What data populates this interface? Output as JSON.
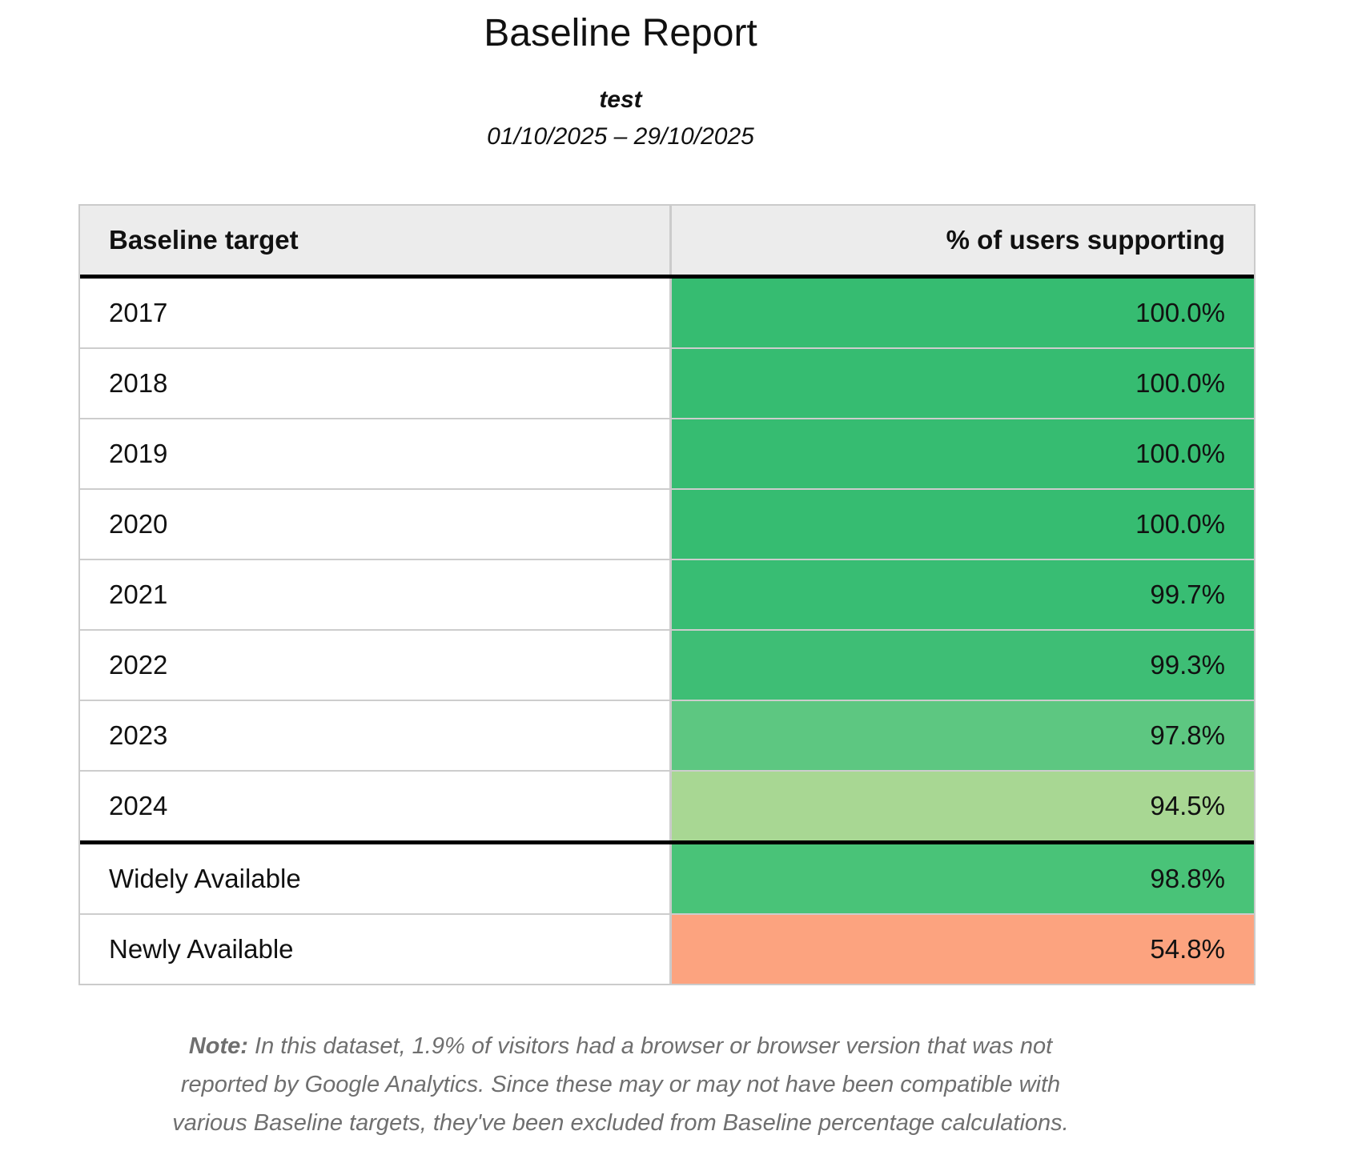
{
  "report": {
    "title": "Baseline Report",
    "subtitle": "test",
    "date_range": "01/10/2025 – 29/10/2025",
    "note_label": "Note:",
    "note_text": " In this dataset, 1.9% of visitors had a browser or browser version that was not reported by Google Analytics. Since these may or may not have been compatible with various Baseline targets, they've been excluded from Baseline percentage calculations."
  },
  "table": {
    "columns": [
      "Baseline target",
      "% of users supporting"
    ],
    "excluded_visitors_pct": "1.9%",
    "rows": [
      {
        "target": "2017",
        "value": "100.0%",
        "color": "#36bc71",
        "separator_above": false
      },
      {
        "target": "2018",
        "value": "100.0%",
        "color": "#36bc71",
        "separator_above": false
      },
      {
        "target": "2019",
        "value": "100.0%",
        "color": "#36bc71",
        "separator_above": false
      },
      {
        "target": "2020",
        "value": "100.0%",
        "color": "#36bc71",
        "separator_above": false
      },
      {
        "target": "2021",
        "value": "99.7%",
        "color": "#38bd73",
        "separator_above": false
      },
      {
        "target": "2022",
        "value": "99.3%",
        "color": "#3ebe75",
        "separator_above": false
      },
      {
        "target": "2023",
        "value": "97.8%",
        "color": "#5dc781",
        "separator_above": false
      },
      {
        "target": "2024",
        "value": "94.5%",
        "color": "#a8d793",
        "separator_above": false
      },
      {
        "target": "Widely Available",
        "value": "98.8%",
        "color": "#49c378",
        "separator_above": true
      },
      {
        "target": "Newly Available",
        "value": "54.8%",
        "color": "#fca37f",
        "separator_above": false
      }
    ]
  }
}
